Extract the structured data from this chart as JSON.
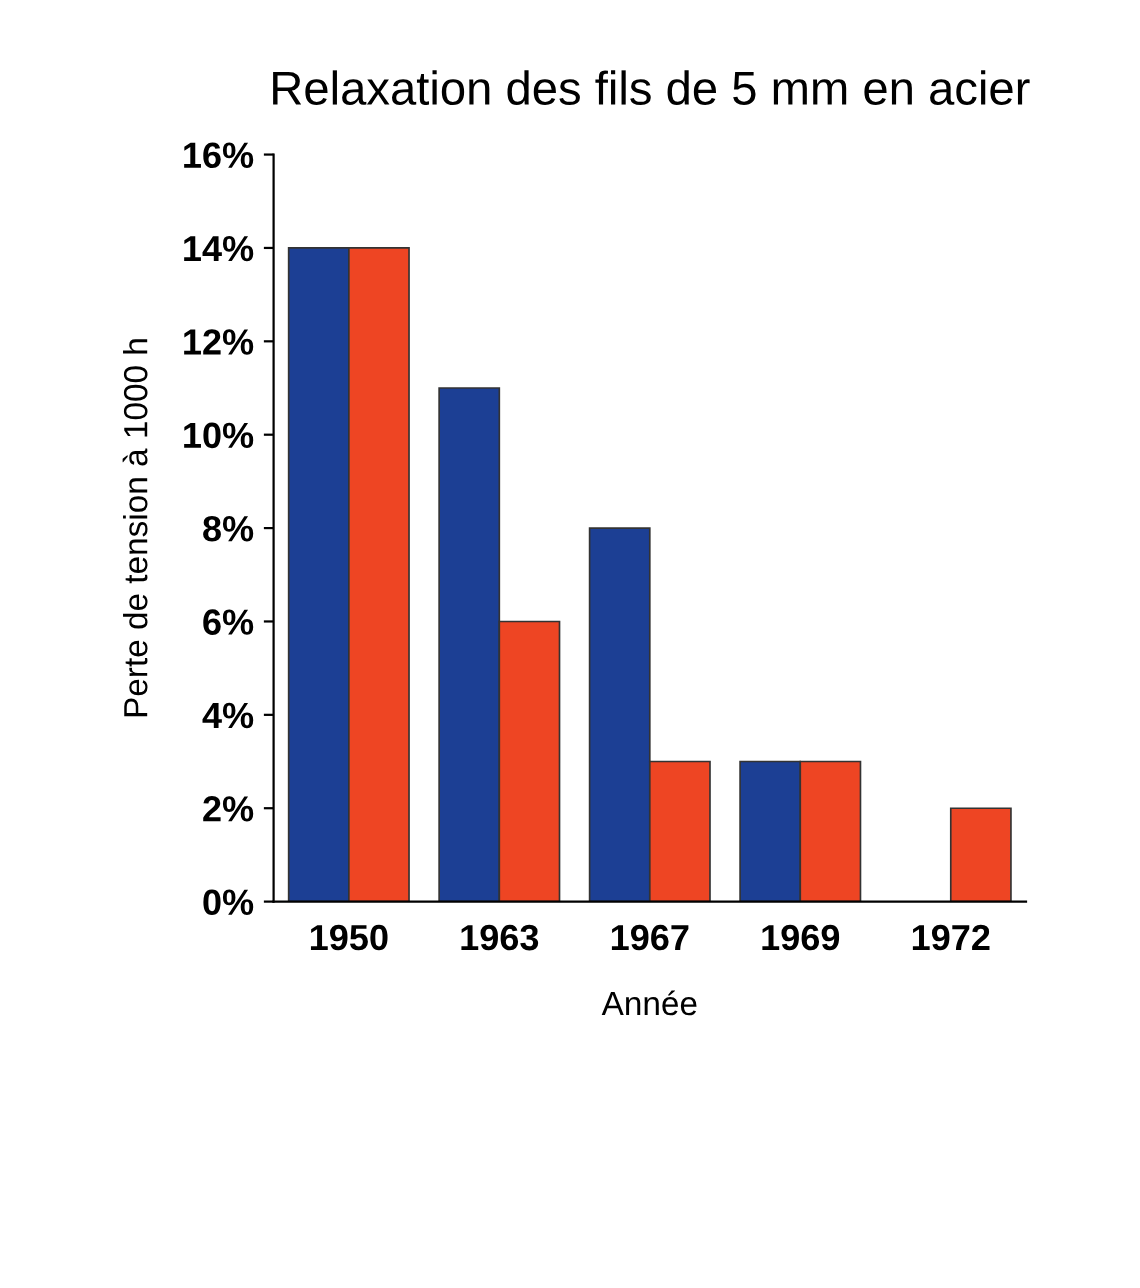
{
  "chart_data": {
    "type": "bar",
    "title": "Relaxation des fils de 5 mm en acier",
    "xlabel": "Année",
    "ylabel": "Perte de tension à 1000 h",
    "categories": [
      "1950",
      "1963",
      "1967",
      "1969",
      "1972"
    ],
    "series": [
      {
        "color": "#1c3f94",
        "values": [
          14,
          11,
          8,
          3,
          null
        ]
      },
      {
        "color": "#ee4523",
        "values": [
          14,
          6,
          3,
          3,
          2
        ]
      }
    ],
    "ylim": [
      0,
      16
    ],
    "yticks": [
      {
        "value": 0,
        "label": "0%"
      },
      {
        "value": 2,
        "label": "2%"
      },
      {
        "value": 4,
        "label": "4%"
      },
      {
        "value": 6,
        "label": "6%"
      },
      {
        "value": 8,
        "label": "8%"
      },
      {
        "value": 10,
        "label": "10%"
      },
      {
        "value": 12,
        "label": "12%"
      },
      {
        "value": 14,
        "label": "14%"
      },
      {
        "value": 16,
        "label": "16%"
      }
    ],
    "grid": false
  }
}
